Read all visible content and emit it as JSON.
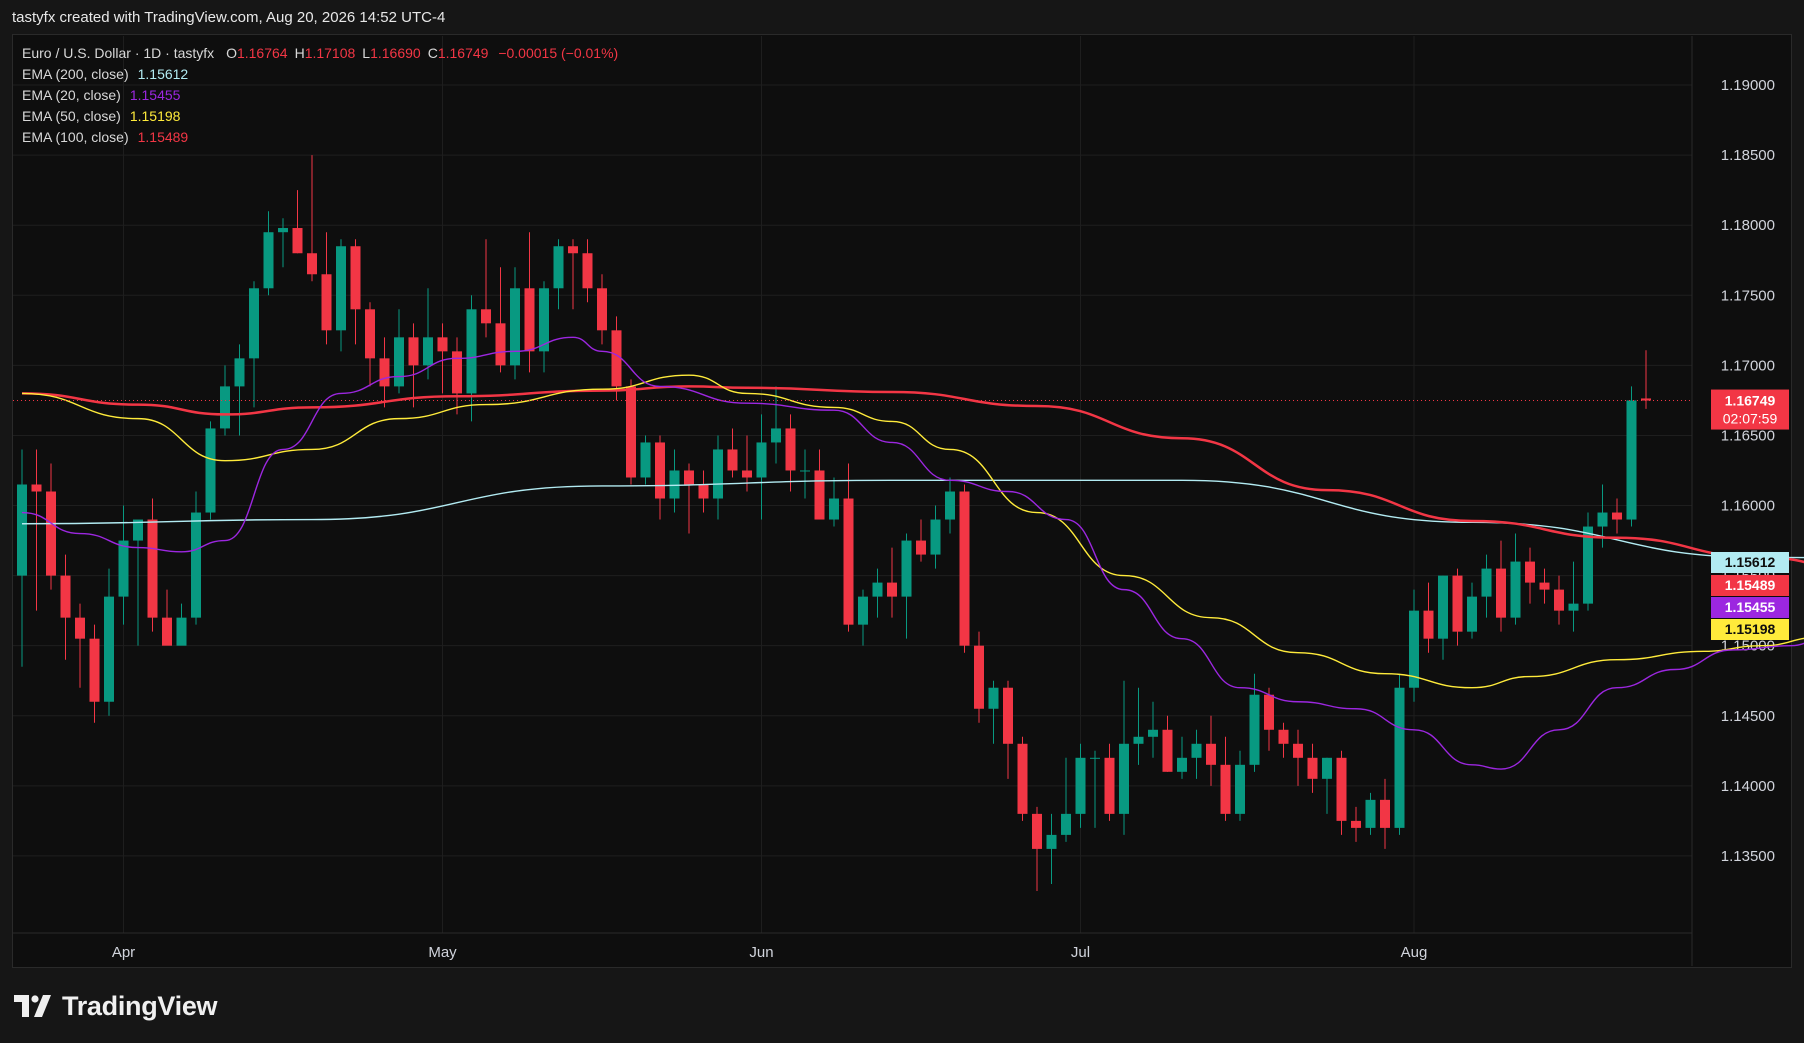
{
  "header": {
    "attribution": "tastyfx created with TradingView.com, Aug 20, 2026 14:52 UTC-4"
  },
  "legend": {
    "symbol": "Euro / U.S. Dollar · 1D · tastyfx",
    "ohlc": [
      {
        "key": "O",
        "value": "1.16764"
      },
      {
        "key": "H",
        "value": "1.17108"
      },
      {
        "key": "L",
        "value": "1.16690"
      },
      {
        "key": "C",
        "value": "1.16749"
      }
    ],
    "change": "−0.00015 (−0.01%)",
    "change_color": "#f23645",
    "indicators": [
      {
        "label": "EMA (200, close)",
        "value": "1.15612",
        "color": "#b2ebf2"
      },
      {
        "label": "EMA (20, close)",
        "value": "1.15455",
        "color": "#9c27e0"
      },
      {
        "label": "EMA (50, close)",
        "value": "1.15198",
        "color": "#ffeb3b"
      },
      {
        "label": "EMA (100, close)",
        "value": "1.15489",
        "color": "#f23645"
      }
    ]
  },
  "price_badge": {
    "price": "1.16749",
    "countdown": "02:07:59"
  },
  "colors": {
    "up": "#089981",
    "down": "#f23645",
    "grid": "#1e1e1e",
    "background": "#0e0e0e"
  },
  "footer": {
    "brand": "TradingView",
    "logo_icon": "tradingview-logo-icon"
  },
  "chart_data": {
    "type": "candlestick",
    "title": "Euro / U.S. Dollar · 1D · tastyfx",
    "ylim": [
      1.1295,
      1.1935
    ],
    "y_ticks": [
      "1.13500",
      "1.14000",
      "1.14500",
      "1.15000",
      "1.15500",
      "1.16000",
      "1.16500",
      "1.17000",
      "1.17500",
      "1.18000",
      "1.18500",
      "1.19000"
    ],
    "x_ticks": [
      {
        "label": "Apr",
        "index": 7
      },
      {
        "label": "May",
        "index": 29
      },
      {
        "label": "Jun",
        "index": 51
      },
      {
        "label": "Jul",
        "index": 73
      },
      {
        "label": "Aug",
        "index": 96
      }
    ],
    "last_price": 1.16749,
    "candles": [
      [
        1.155,
        1.164,
        1.1485,
        1.1615
      ],
      [
        1.1615,
        1.164,
        1.1525,
        1.161
      ],
      [
        1.161,
        1.163,
        1.154,
        1.155
      ],
      [
        1.155,
        1.1565,
        1.149,
        1.152
      ],
      [
        1.152,
        1.153,
        1.147,
        1.1505
      ],
      [
        1.1505,
        1.1515,
        1.1445,
        1.146
      ],
      [
        1.146,
        1.1555,
        1.145,
        1.1535
      ],
      [
        1.1535,
        1.16,
        1.1515,
        1.1575
      ],
      [
        1.1575,
        1.1585,
        1.15,
        1.159
      ],
      [
        1.159,
        1.1605,
        1.151,
        1.152
      ],
      [
        1.152,
        1.154,
        1.1505,
        1.15
      ],
      [
        1.15,
        1.153,
        1.1505,
        1.152
      ],
      [
        1.152,
        1.161,
        1.1515,
        1.1595
      ],
      [
        1.1595,
        1.166,
        1.159,
        1.1655
      ],
      [
        1.1655,
        1.17,
        1.165,
        1.1685
      ],
      [
        1.1685,
        1.1715,
        1.165,
        1.1705
      ],
      [
        1.1705,
        1.176,
        1.167,
        1.1755
      ],
      [
        1.1755,
        1.181,
        1.175,
        1.1795
      ],
      [
        1.1795,
        1.1805,
        1.177,
        1.1798
      ],
      [
        1.1798,
        1.1825,
        1.178,
        1.178
      ],
      [
        1.178,
        1.185,
        1.176,
        1.1765
      ],
      [
        1.1765,
        1.1795,
        1.1715,
        1.1725
      ],
      [
        1.1725,
        1.179,
        1.171,
        1.1785
      ],
      [
        1.1785,
        1.179,
        1.1715,
        1.174
      ],
      [
        1.174,
        1.1745,
        1.1685,
        1.1705
      ],
      [
        1.1705,
        1.172,
        1.167,
        1.1685
      ],
      [
        1.1685,
        1.174,
        1.168,
        1.172
      ],
      [
        1.172,
        1.173,
        1.167,
        1.17
      ],
      [
        1.17,
        1.1755,
        1.169,
        1.172
      ],
      [
        1.172,
        1.173,
        1.168,
        1.171
      ],
      [
        1.171,
        1.172,
        1.1665,
        1.168
      ],
      [
        1.168,
        1.175,
        1.166,
        1.174
      ],
      [
        1.174,
        1.179,
        1.172,
        1.173
      ],
      [
        1.173,
        1.177,
        1.1695,
        1.17
      ],
      [
        1.17,
        1.177,
        1.169,
        1.1755
      ],
      [
        1.1755,
        1.1795,
        1.1695,
        1.171
      ],
      [
        1.171,
        1.176,
        1.1695,
        1.1755
      ],
      [
        1.1755,
        1.179,
        1.174,
        1.1785
      ],
      [
        1.1785,
        1.179,
        1.174,
        1.178
      ],
      [
        1.178,
        1.179,
        1.1745,
        1.1755
      ],
      [
        1.1755,
        1.1765,
        1.1715,
        1.1725
      ],
      [
        1.1725,
        1.1735,
        1.1675,
        1.1685
      ],
      [
        1.1685,
        1.169,
        1.1615,
        1.162
      ],
      [
        1.162,
        1.165,
        1.1615,
        1.1645
      ],
      [
        1.1645,
        1.165,
        1.159,
        1.1605
      ],
      [
        1.1605,
        1.164,
        1.1595,
        1.1625
      ],
      [
        1.1625,
        1.163,
        1.158,
        1.1615
      ],
      [
        1.1615,
        1.1625,
        1.1595,
        1.1605
      ],
      [
        1.1605,
        1.165,
        1.159,
        1.164
      ],
      [
        1.164,
        1.1655,
        1.162,
        1.1625
      ],
      [
        1.1625,
        1.165,
        1.161,
        1.162
      ],
      [
        1.162,
        1.1665,
        1.159,
        1.1645
      ],
      [
        1.1645,
        1.1685,
        1.163,
        1.1655
      ],
      [
        1.1655,
        1.1665,
        1.161,
        1.1625
      ],
      [
        1.1625,
        1.164,
        1.1605,
        1.1625
      ],
      [
        1.1625,
        1.164,
        1.1595,
        1.159
      ],
      [
        1.159,
        1.162,
        1.1585,
        1.1605
      ],
      [
        1.1605,
        1.163,
        1.151,
        1.1515
      ],
      [
        1.1515,
        1.154,
        1.15,
        1.1535
      ],
      [
        1.1535,
        1.1555,
        1.152,
        1.1545
      ],
      [
        1.1545,
        1.157,
        1.152,
        1.1535
      ],
      [
        1.1535,
        1.158,
        1.1505,
        1.1575
      ],
      [
        1.1575,
        1.159,
        1.156,
        1.1565
      ],
      [
        1.1565,
        1.16,
        1.1555,
        1.159
      ],
      [
        1.159,
        1.162,
        1.158,
        1.161
      ],
      [
        1.161,
        1.1615,
        1.1495,
        1.15
      ],
      [
        1.15,
        1.151,
        1.1445,
        1.1455
      ],
      [
        1.1455,
        1.1475,
        1.143,
        1.147
      ],
      [
        1.147,
        1.1475,
        1.1405,
        1.143
      ],
      [
        1.143,
        1.1435,
        1.1375,
        1.138
      ],
      [
        1.138,
        1.1385,
        1.1325,
        1.1355
      ],
      [
        1.1355,
        1.138,
        1.133,
        1.1365
      ],
      [
        1.1365,
        1.142,
        1.136,
        1.138
      ],
      [
        1.138,
        1.143,
        1.137,
        1.142
      ],
      [
        1.142,
        1.1425,
        1.137,
        1.142
      ],
      [
        1.142,
        1.143,
        1.1375,
        1.138
      ],
      [
        1.138,
        1.1475,
        1.1365,
        1.143
      ],
      [
        1.143,
        1.147,
        1.1415,
        1.1435
      ],
      [
        1.1435,
        1.146,
        1.142,
        1.144
      ],
      [
        1.144,
        1.145,
        1.141,
        1.141
      ],
      [
        1.141,
        1.1435,
        1.1405,
        1.142
      ],
      [
        1.142,
        1.144,
        1.1405,
        1.143
      ],
      [
        1.143,
        1.145,
        1.14,
        1.1415
      ],
      [
        1.1415,
        1.1435,
        1.1375,
        1.138
      ],
      [
        1.138,
        1.1425,
        1.1375,
        1.1415
      ],
      [
        1.1415,
        1.148,
        1.141,
        1.1465
      ],
      [
        1.1465,
        1.147,
        1.1425,
        1.144
      ],
      [
        1.144,
        1.1445,
        1.142,
        1.143
      ],
      [
        1.143,
        1.144,
        1.14,
        1.142
      ],
      [
        1.142,
        1.143,
        1.1395,
        1.1405
      ],
      [
        1.1405,
        1.142,
        1.138,
        1.142
      ],
      [
        1.142,
        1.1425,
        1.1365,
        1.1375
      ],
      [
        1.1375,
        1.1385,
        1.136,
        1.137
      ],
      [
        1.137,
        1.1395,
        1.1365,
        1.139
      ],
      [
        1.139,
        1.1405,
        1.1355,
        1.137
      ],
      [
        1.137,
        1.148,
        1.1365,
        1.147
      ],
      [
        1.147,
        1.154,
        1.146,
        1.1525
      ],
      [
        1.1525,
        1.1545,
        1.1495,
        1.1505
      ],
      [
        1.1505,
        1.155,
        1.149,
        1.155
      ],
      [
        1.155,
        1.1555,
        1.15,
        1.151
      ],
      [
        1.151,
        1.1545,
        1.1505,
        1.1535
      ],
      [
        1.1535,
        1.1565,
        1.152,
        1.1555
      ],
      [
        1.1555,
        1.1575,
        1.151,
        1.152
      ],
      [
        1.152,
        1.158,
        1.1515,
        1.156
      ],
      [
        1.156,
        1.157,
        1.153,
        1.1545
      ],
      [
        1.1545,
        1.1555,
        1.153,
        1.154
      ],
      [
        1.154,
        1.155,
        1.1515,
        1.1525
      ],
      [
        1.1525,
        1.156,
        1.151,
        1.153
      ],
      [
        1.153,
        1.1595,
        1.1525,
        1.1585
      ],
      [
        1.1585,
        1.1615,
        1.157,
        1.1595
      ],
      [
        1.1595,
        1.1605,
        1.158,
        1.159
      ],
      [
        1.159,
        1.1685,
        1.1585,
        1.1675
      ],
      [
        1.16764,
        1.17108,
        1.1669,
        1.16749
      ]
    ],
    "ema": [
      {
        "name": "EMA (200, close)",
        "color": "#b2ebf2",
        "points": [
          [
            0,
            1.1587
          ],
          [
            20,
            1.159
          ],
          [
            40,
            1.1614
          ],
          [
            60,
            1.1618
          ],
          [
            80,
            1.1618
          ],
          [
            100,
            1.1588
          ],
          [
            120,
            1.1563
          ],
          [
            140,
            1.1559
          ],
          [
            160,
            1.1559
          ],
          [
            186,
            1.156
          ],
          [
            188,
            1.1561
          ]
        ]
      },
      {
        "name": "EMA (100, close)",
        "color": "#f23645",
        "points": [
          [
            0,
            1.168
          ],
          [
            8,
            1.1672
          ],
          [
            14,
            1.1665
          ],
          [
            20,
            1.167
          ],
          [
            30,
            1.1678
          ],
          [
            40,
            1.1682
          ],
          [
            46,
            1.1685
          ],
          [
            50,
            1.1684
          ],
          [
            60,
            1.1681
          ],
          [
            70,
            1.1671
          ],
          [
            80,
            1.1648
          ],
          [
            90,
            1.1611
          ],
          [
            100,
            1.1589
          ],
          [
            110,
            1.1577
          ],
          [
            120,
            1.1563
          ],
          [
            128,
            1.155
          ],
          [
            136,
            1.1545
          ],
          [
            145,
            1.1546
          ],
          [
            150,
            1.1546
          ],
          [
            156,
            1.1545
          ],
          [
            160,
            1.1549
          ]
        ]
      },
      {
        "name": "EMA (50, close)",
        "color": "#ffeb3b",
        "points": [
          [
            0,
            1.168
          ],
          [
            8,
            1.1662
          ],
          [
            14,
            1.1632
          ],
          [
            20,
            1.164
          ],
          [
            26,
            1.1662
          ],
          [
            32,
            1.1672
          ],
          [
            40,
            1.1683
          ],
          [
            46,
            1.1693
          ],
          [
            50,
            1.168
          ],
          [
            56,
            1.167
          ],
          [
            60,
            1.166
          ],
          [
            64,
            1.164
          ],
          [
            70,
            1.1595
          ],
          [
            76,
            1.155
          ],
          [
            82,
            1.152
          ],
          [
            88,
            1.1495
          ],
          [
            94,
            1.148
          ],
          [
            100,
            1.147
          ],
          [
            104,
            1.1478
          ],
          [
            110,
            1.149
          ],
          [
            116,
            1.1496
          ],
          [
            120,
            1.15
          ],
          [
            124,
            1.1506
          ],
          [
            128,
            1.152
          ]
        ]
      },
      {
        "name": "EMA (20, close)",
        "color": "#9c27e0",
        "points": [
          [
            0,
            1.1595
          ],
          [
            4,
            1.158
          ],
          [
            8,
            1.157
          ],
          [
            11,
            1.1567
          ],
          [
            14,
            1.1575
          ],
          [
            18,
            1.164
          ],
          [
            22,
            1.168
          ],
          [
            26,
            1.1692
          ],
          [
            30,
            1.1705
          ],
          [
            34,
            1.171
          ],
          [
            38,
            1.172
          ],
          [
            40,
            1.171
          ],
          [
            44,
            1.1685
          ],
          [
            50,
            1.1673
          ],
          [
            56,
            1.1668
          ],
          [
            60,
            1.1645
          ],
          [
            64,
            1.1618
          ],
          [
            68,
            1.161
          ],
          [
            72,
            1.159
          ],
          [
            76,
            1.154
          ],
          [
            80,
            1.1505
          ],
          [
            84,
            1.147
          ],
          [
            88,
            1.146
          ],
          [
            92,
            1.1455
          ],
          [
            96,
            1.144
          ],
          [
            100,
            1.1415
          ],
          [
            102,
            1.1412
          ],
          [
            106,
            1.144
          ],
          [
            110,
            1.147
          ],
          [
            114,
            1.1483
          ],
          [
            118,
            1.1497
          ],
          [
            122,
            1.15
          ],
          [
            126,
            1.152
          ],
          [
            128,
            1.1545
          ]
        ]
      }
    ]
  }
}
